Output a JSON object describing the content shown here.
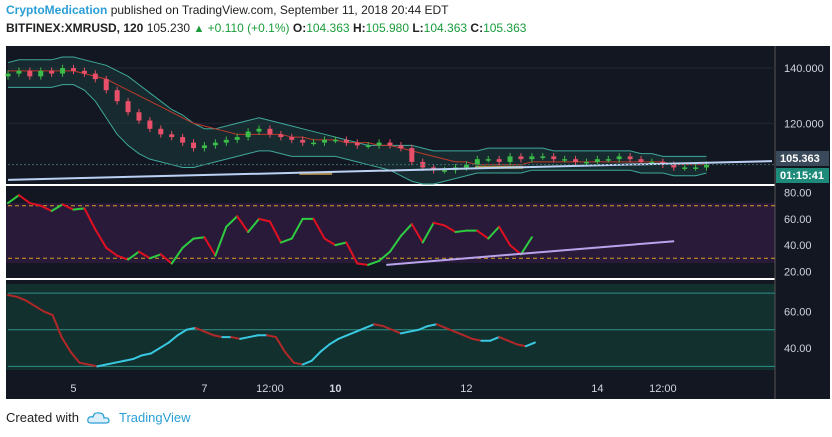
{
  "header": {
    "author": "CryptoMedication",
    "published_text": "published on TradingView.com, September 11, 2018 20:44 EDT",
    "symbol": "BITFINEX:XMRUSD, 120",
    "last": "105.230",
    "change": "+0.110 (+0.1%)",
    "o_label": "O:",
    "o_value": "104.363",
    "h_label": "H:",
    "h_value": "105.980",
    "l_label": "L:",
    "l_value": "104.363",
    "c_label": "C:",
    "c_value": "105.363"
  },
  "footer": {
    "created_with": "Created with",
    "brand": "TradingView"
  },
  "colors": {
    "bull": "#3cbc48",
    "bear": "#e8506a",
    "trend": "#bcd2f5",
    "stoch_up": "#2ecc40",
    "stoch_down": "#e01020",
    "osc_up": "#38c8e0",
    "osc_down": "#b02828",
    "price_tag": "#3a4a5a",
    "time_tag": "#1d8a7a",
    "zone": "#c8a050"
  },
  "chart_data": [
    {
      "type": "candlestick",
      "panel": "price",
      "ylim": [
        98,
        148
      ],
      "yticks": [
        "140.000",
        "120.000"
      ],
      "ytick_values": [
        140,
        120
      ],
      "price_label": "105.363",
      "time_label": "01:15:41",
      "xticks": [
        {
          "label": "5",
          "x": 6,
          "bold": false
        },
        {
          "label": "7",
          "x": 18,
          "bold": false
        },
        {
          "label": "12:00",
          "x": 24,
          "bold": false
        },
        {
          "label": "10",
          "x": 30,
          "bold": true
        },
        {
          "label": "12",
          "x": 42,
          "bold": false
        },
        {
          "label": "14",
          "x": 54,
          "bold": false
        },
        {
          "label": "12:00",
          "x": 60,
          "bold": false
        }
      ],
      "xlim": [
        0,
        70
      ],
      "trendline": [
        [
          0,
          99.5
        ],
        [
          70,
          106.3
        ]
      ],
      "support_zones": [
        [
          26.7,
          29.7,
          101.3,
          102.5
        ],
        [
          42.8,
          47.2,
          103.5,
          104.6
        ]
      ],
      "candles_close": [
        138,
        139,
        137,
        139,
        138,
        140,
        139,
        138,
        136,
        132,
        128,
        124,
        121,
        118,
        116,
        115,
        113,
        111,
        112,
        113,
        114,
        115,
        117,
        118,
        116,
        115,
        114,
        113,
        113,
        114,
        114,
        113,
        112,
        112,
        113,
        112,
        111,
        106,
        104,
        103,
        103,
        104,
        105,
        107,
        107,
        106,
        108,
        107,
        108,
        108,
        107,
        107,
        106,
        106,
        107,
        107,
        108,
        107,
        106,
        106,
        105,
        104,
        104,
        104,
        105
      ],
      "bb_upper": [
        142,
        143,
        143,
        143,
        143,
        144,
        144,
        143,
        142,
        141,
        139,
        137,
        134,
        131,
        128,
        125,
        123,
        120,
        118,
        118,
        119,
        120,
        121,
        122,
        121,
        120,
        119,
        118,
        117,
        116,
        115,
        114,
        113,
        112,
        112,
        112,
        112,
        112,
        111,
        110,
        110,
        110,
        110,
        110,
        111,
        111,
        111,
        111,
        111,
        111,
        110,
        110,
        110,
        110,
        110,
        110,
        110,
        110,
        109,
        109,
        108,
        108,
        108,
        108,
        108
      ],
      "bb_lower": [
        133,
        133,
        133,
        133,
        133,
        134,
        134,
        132,
        128,
        122,
        116,
        112,
        109,
        107,
        106,
        105,
        104,
        104,
        105,
        106,
        107,
        108,
        109,
        110,
        110,
        109,
        108,
        108,
        108,
        108,
        108,
        107,
        106,
        105,
        104,
        103,
        101,
        99,
        98,
        98,
        99,
        100,
        101,
        102,
        102,
        102,
        102,
        102,
        103,
        103,
        103,
        103,
        103,
        103,
        103,
        103,
        103,
        103,
        102,
        102,
        102,
        101,
        101,
        101,
        102
      ],
      "ma": [
        139,
        139,
        139,
        139,
        139,
        139,
        139,
        138,
        137,
        136,
        134,
        132,
        130,
        128,
        126,
        124,
        122,
        120,
        119,
        118,
        117,
        116,
        116,
        116,
        116,
        116,
        115,
        115,
        114,
        114,
        114,
        113,
        113,
        113,
        112,
        112,
        111,
        110,
        109,
        108,
        107,
        106,
        106,
        105,
        105,
        105,
        105,
        105,
        106,
        106,
        106,
        106,
        106,
        106,
        106,
        106,
        106,
        106,
        106,
        106,
        106,
        105,
        105,
        105,
        105
      ]
    },
    {
      "type": "line",
      "panel": "stochastic",
      "ylim": [
        15,
        85
      ],
      "yticks": [
        "80.00",
        "60.00",
        "40.00",
        "20.00"
      ],
      "ytick_values": [
        80,
        60,
        40,
        20
      ],
      "bands": [
        30,
        70
      ],
      "series": [
        {
          "x": [
            0,
            1,
            2,
            3,
            4,
            5,
            6,
            7,
            8,
            9,
            10,
            11,
            12,
            13,
            14,
            15,
            16,
            17,
            18,
            19,
            20,
            21,
            22,
            23,
            24,
            25,
            26,
            27,
            28,
            29,
            30,
            31,
            32,
            33,
            34,
            35,
            36,
            37,
            38,
            39,
            40,
            41,
            42,
            43,
            44,
            45,
            46,
            47,
            48
          ],
          "values": [
            72,
            78,
            72,
            70,
            66,
            71,
            67,
            68,
            52,
            38,
            32,
            29,
            35,
            30,
            33,
            26,
            38,
            45,
            46,
            32,
            54,
            62,
            50,
            60,
            58,
            42,
            45,
            60,
            60,
            45,
            40,
            42,
            26,
            25,
            28,
            35,
            47,
            56,
            42,
            57,
            55,
            50,
            51,
            51,
            45,
            54,
            40,
            33,
            46
          ]
        }
      ],
      "trendline": [
        [
          20,
          25
        ],
        [
          45,
          43
        ]
      ]
    },
    {
      "type": "line",
      "panel": "oscillator",
      "ylim": [
        28,
        75
      ],
      "yticks": [
        "60.00",
        "40.00"
      ],
      "ytick_values": [
        60,
        40
      ],
      "hlines": [
        70,
        50,
        30
      ],
      "series": [
        {
          "x": [
            0,
            1,
            2,
            3,
            4,
            5,
            6,
            7,
            8,
            9,
            10,
            11,
            12,
            13,
            14,
            15,
            16,
            17,
            18,
            19,
            20,
            21,
            22,
            23,
            24,
            25,
            26,
            27,
            28,
            29,
            30,
            31,
            32,
            33,
            34,
            35,
            36,
            37,
            38,
            39,
            40,
            41,
            42,
            43,
            44,
            45,
            46,
            47,
            48,
            49,
            50,
            51,
            52,
            53,
            54,
            55,
            56,
            57,
            58,
            59
          ],
          "values": [
            69,
            68,
            66,
            63,
            60,
            58,
            46,
            38,
            32,
            31,
            30,
            31,
            32,
            33,
            34,
            36,
            37,
            40,
            43,
            47,
            50,
            51,
            49,
            47,
            46,
            46,
            45,
            46,
            47,
            47,
            46,
            38,
            32,
            31,
            33,
            38,
            42,
            45,
            47,
            49,
            51,
            53,
            52,
            50,
            48,
            49,
            50,
            52,
            53,
            51,
            49,
            47,
            45,
            44,
            44,
            46,
            44,
            42,
            41,
            43
          ]
        }
      ]
    }
  ]
}
